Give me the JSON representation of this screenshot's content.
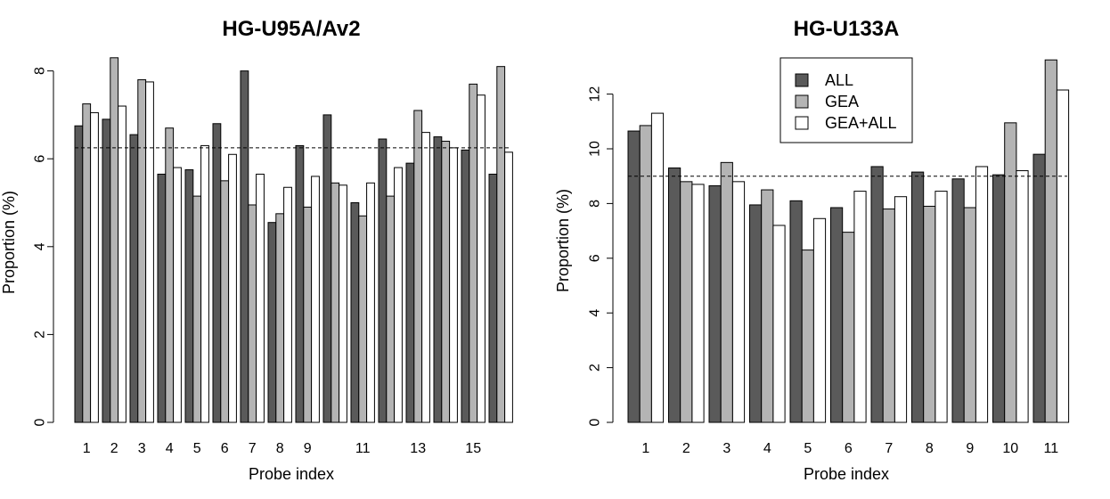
{
  "chart_data": [
    {
      "type": "bar",
      "title": "HG-U95A/Av2",
      "xlabel": "Probe index",
      "ylabel": "Proportion (%)",
      "ylim": [
        0,
        8.3
      ],
      "yticks": [
        0,
        2,
        4,
        6,
        8
      ],
      "categories": [
        "1",
        "2",
        "3",
        "4",
        "5",
        "6",
        "7",
        "8",
        "9",
        "10",
        "11",
        "12",
        "13",
        "14",
        "15",
        "16"
      ],
      "xtick_labels": [
        "1",
        "2",
        "3",
        "4",
        "5",
        "6",
        "7",
        "8",
        "9",
        "",
        "11",
        "",
        "13",
        "",
        "15",
        ""
      ],
      "reference_line": 6.25,
      "legend": "none",
      "series": [
        {
          "name": "ALL",
          "color": "#5a5a5a",
          "values": [
            6.75,
            6.9,
            6.55,
            5.65,
            5.75,
            6.8,
            8.0,
            4.55,
            6.3,
            7.0,
            5.0,
            6.45,
            5.9,
            6.5,
            6.2,
            5.65
          ]
        },
        {
          "name": "GEA",
          "color": "#b4b4b4",
          "values": [
            7.25,
            8.3,
            7.8,
            6.7,
            5.15,
            5.5,
            4.95,
            4.75,
            4.9,
            5.45,
            4.7,
            5.15,
            7.1,
            6.4,
            7.7,
            8.1
          ]
        },
        {
          "name": "GEA+ALL",
          "color": "#ffffff",
          "values": [
            7.05,
            7.2,
            7.75,
            5.8,
            6.3,
            6.1,
            5.65,
            5.35,
            5.6,
            5.4,
            5.45,
            5.8,
            6.6,
            6.25,
            7.45,
            6.15
          ]
        }
      ]
    },
    {
      "type": "bar",
      "title": "HG-U133A",
      "xlabel": "Probe index",
      "ylabel": "Proportion (%)",
      "ylim": [
        0,
        13.3
      ],
      "yticks": [
        0,
        2,
        4,
        6,
        8,
        10,
        12
      ],
      "categories": [
        "1",
        "2",
        "3",
        "4",
        "5",
        "6",
        "7",
        "8",
        "9",
        "10",
        "11"
      ],
      "xtick_labels": [
        "1",
        "2",
        "3",
        "4",
        "5",
        "6",
        "7",
        "8",
        "9",
        "10",
        "11"
      ],
      "reference_line": 9.0,
      "legend": "top-center",
      "series": [
        {
          "name": "ALL",
          "color": "#5a5a5a",
          "values": [
            10.65,
            9.3,
            8.65,
            7.95,
            8.1,
            7.85,
            9.35,
            9.15,
            8.9,
            9.05,
            9.8
          ]
        },
        {
          "name": "GEA",
          "color": "#b4b4b4",
          "values": [
            10.85,
            8.8,
            9.5,
            8.5,
            6.3,
            6.95,
            7.8,
            7.9,
            7.85,
            10.95,
            13.25
          ]
        },
        {
          "name": "GEA+ALL",
          "color": "#ffffff",
          "values": [
            11.3,
            8.7,
            8.8,
            7.2,
            7.45,
            8.45,
            8.25,
            8.45,
            9.35,
            9.2,
            12.15
          ]
        }
      ]
    }
  ]
}
